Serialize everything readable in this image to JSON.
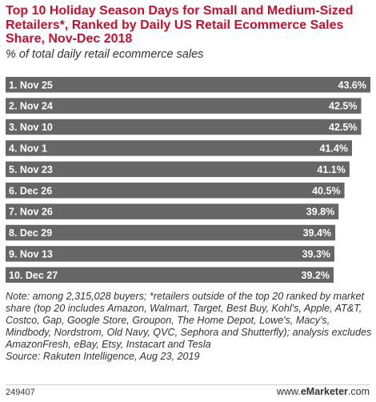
{
  "chart_data": {
    "type": "bar",
    "orientation": "horizontal",
    "title": "Top 10 Holiday Season Days for Small and Medium-Sized Retailers*, Ranked by Daily US Retail Ecommerce Sales Share, Nov-Dec 2018",
    "subtitle": "% of total daily retail ecommerce sales",
    "categories": [
      "1. Nov 25",
      "2. Nov 24",
      "3. Nov 10",
      "4. Nov 1",
      "5. Nov 23",
      "6. Dec 26",
      "7. Nov 26",
      "8. Dec 29",
      "9. Nov 13",
      "10. Dec 27"
    ],
    "values": [
      43.6,
      42.5,
      42.5,
      41.4,
      41.1,
      40.5,
      39.8,
      39.4,
      39.3,
      39.2
    ],
    "value_labels": [
      "43.6%",
      "42.5%",
      "42.5%",
      "41.4%",
      "41.1%",
      "40.5%",
      "39.8%",
      "39.4%",
      "39.3%",
      "39.2%"
    ],
    "xlim": [
      0,
      43.6
    ],
    "bar_color": "#666666",
    "grid": false,
    "legend": "none"
  },
  "note": "Note: among 2,315,028 buyers; *retailers outside of the top 20 ranked by market share (top 20 includes Amazon, Walmart, Target, Best Buy, Kohl's, Apple, AT&T, Costco, Gap, Google Store, Groupon, The Home Depot, Lowe's, Macy's, Mindbody, Nordstrom, Old Navy, QVC, Sephora and Shutterfly); analysis excludes AmazonFresh, eBay, Etsy, Instacart and Tesla",
  "source": "Source: Rakuten Intelligence, Aug 23, 2019",
  "footer": {
    "chart_id": "249407",
    "brand_prefix": "www.",
    "brand_e": "e",
    "brand_main": "Marketer",
    "brand_suffix": ".com"
  },
  "colors": {
    "title": "#c8102e",
    "bar": "#666666",
    "bar_label_inside": "#ffffff",
    "bar_label_outside": "#222222"
  }
}
